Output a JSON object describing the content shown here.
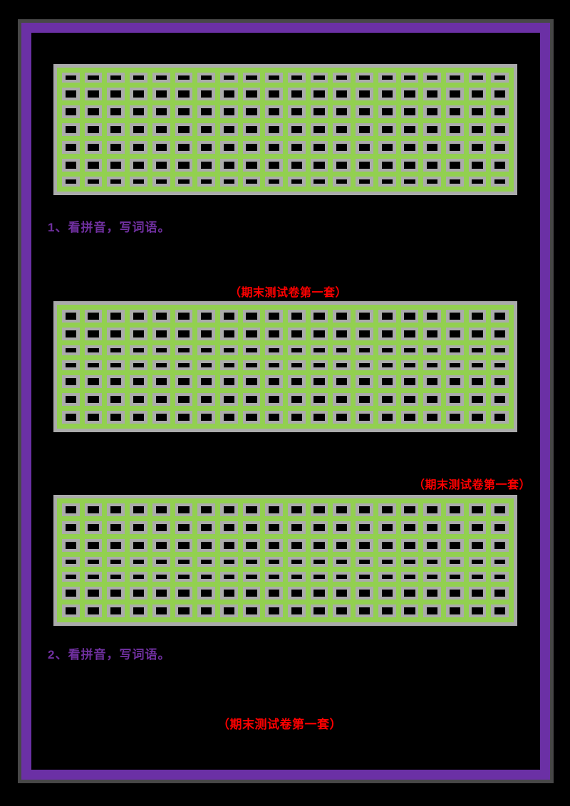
{
  "colors": {
    "frame_color": "#6B30A5",
    "frame_edge_color": "#474747",
    "grid_line": "#92D050",
    "cell_border": "#ABABAB",
    "cell_fill": "#000000",
    "heading_text": "#7030A0",
    "annotation_text": "#FF0000",
    "page_background": "#000000"
  },
  "headings": [
    {
      "label": "1、看拼音，写词语。"
    },
    {
      "label": "2、看拼音，写词语。"
    }
  ],
  "annotations": [
    {
      "label": "（期末测试卷第一套）"
    },
    {
      "label": "（期末测试卷第一套）"
    },
    {
      "label": "（期末测试卷第一套）"
    }
  ],
  "grids": [
    {
      "columns": 20,
      "row_types": [
        "short",
        "tall",
        "tall",
        "tall",
        "tall",
        "tall",
        "short"
      ]
    },
    {
      "columns": 20,
      "row_types": [
        "tall",
        "tall",
        "short",
        "short",
        "tall",
        "tall",
        "tall"
      ]
    },
    {
      "columns": 20,
      "row_types": [
        "tall",
        "tall",
        "tall",
        "short",
        "short",
        "tall",
        "tall"
      ]
    }
  ]
}
